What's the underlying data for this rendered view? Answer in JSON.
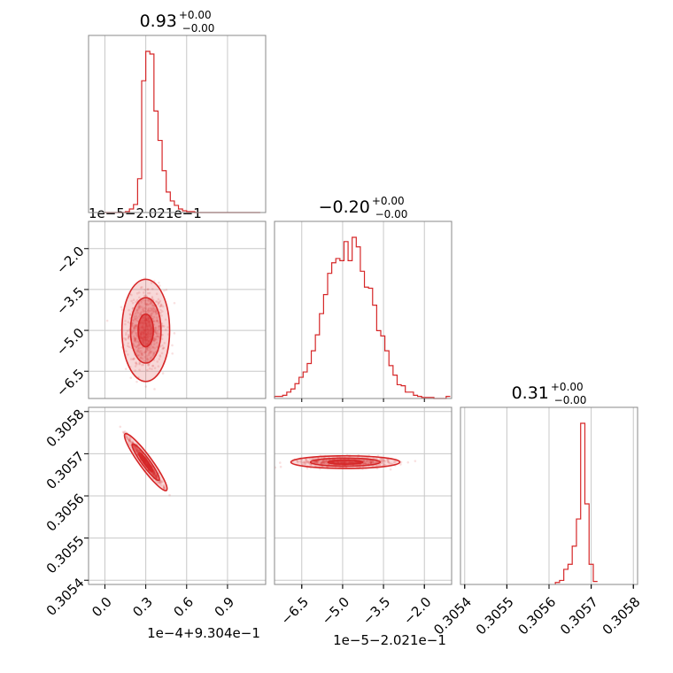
{
  "chart_data": {
    "type": "corner",
    "color": "#d62728",
    "grid": true,
    "parameters": [
      {
        "title_value": "0.93",
        "title_sup": "+0.00",
        "title_sub": "−0.00",
        "offset_label": "1e−4+9.304e−1",
        "ticks": [
          "0.0",
          "0.3",
          "0.6",
          "0.9"
        ],
        "range": [
          -0.12,
          1.18
        ],
        "tick_values": [
          0.0,
          0.3,
          0.6,
          0.9
        ]
      },
      {
        "title_value": "−0.20",
        "title_sup": "+0.00",
        "title_sub": "−0.00",
        "offset_label": "1e−5−2.021e−1",
        "ticks": [
          "−6.5",
          "−5.0",
          "−3.5",
          "−2.0"
        ],
        "range": [
          -7.5,
          -1.0
        ],
        "tick_values": [
          -6.5,
          -5.0,
          -3.5,
          -2.0
        ]
      },
      {
        "title_value": "0.31",
        "title_sup": "+0.00",
        "title_sub": "−0.00",
        "offset_label": "",
        "ticks": [
          "0.3054",
          "0.3055",
          "0.3056",
          "0.3057",
          "0.3058"
        ],
        "range": [
          0.30539,
          0.30581
        ],
        "tick_values": [
          0.3054,
          0.3055,
          0.3056,
          0.3057,
          0.3058
        ]
      }
    ],
    "y_offset_label_row1": "1e−5−2.021e−1",
    "y_ticks_row1": [
      "−2.0",
      "−3.5",
      "−5.0",
      "−6.5"
    ],
    "y_ticks_row2": [
      "0.3058",
      "0.3057",
      "0.3056",
      "0.3055",
      "0.3054"
    ],
    "histograms": [
      {
        "bins": [
          0.0,
          0.03,
          0.06,
          0.09,
          0.12,
          0.15,
          0.18,
          0.21,
          0.24,
          0.27,
          0.3,
          0.33,
          0.36,
          0.39,
          0.42,
          0.45,
          0.48,
          0.51,
          0.54,
          0.57,
          0.6,
          0.63,
          0.66,
          0.69,
          0.72,
          0.75,
          0.78,
          0.81,
          0.84,
          0.87,
          0.9,
          0.93,
          0.96,
          0.99,
          1.02,
          1.05,
          1.08,
          1.11,
          1.14
        ],
        "counts": [
          0,
          0,
          0,
          0,
          0,
          1,
          4,
          9,
          38,
          148,
          181,
          178,
          114,
          81,
          47,
          23,
          13,
          8,
          4,
          2,
          1,
          1,
          0,
          0,
          0,
          0,
          0,
          0,
          0,
          0,
          0,
          0,
          0,
          0,
          0,
          0,
          0,
          0
        ]
      },
      {
        "bins": [
          -7.5,
          -7.35,
          -7.2,
          -7.05,
          -6.9,
          -6.75,
          -6.6,
          -6.45,
          -6.3,
          -6.15,
          -6.0,
          -5.85,
          -5.7,
          -5.55,
          -5.4,
          -5.25,
          -5.1,
          -4.95,
          -4.8,
          -4.65,
          -4.5,
          -4.35,
          -4.2,
          -4.05,
          -3.9,
          -3.75,
          -3.6,
          -3.45,
          -3.3,
          -3.15,
          -3.0,
          -2.85,
          -2.7,
          -2.55,
          -2.4,
          -2.25,
          -2.1,
          -1.95,
          -1.8,
          -1.65,
          -1.5,
          -1.35,
          -1.2,
          -1.05
        ],
        "counts": [
          2,
          2,
          3,
          6,
          9,
          14,
          20,
          25,
          33,
          45,
          60,
          80,
          98,
          118,
          128,
          132,
          130,
          148,
          130,
          152,
          143,
          120,
          105,
          104,
          88,
          64,
          59,
          45,
          31,
          22,
          13,
          12,
          6,
          6,
          3,
          2,
          1,
          1,
          1,
          0,
          0,
          0,
          2
        ]
      },
      {
        "bins": [
          0.305615,
          0.305625,
          0.305635,
          0.305645,
          0.305655,
          0.305665,
          0.305675,
          0.305685,
          0.305695,
          0.305705,
          0.305715
        ],
        "counts": [
          2,
          4,
          15,
          20,
          38,
          65,
          160,
          80,
          20,
          3
        ]
      }
    ],
    "scatter_2d": [
      {
        "x_param": 0,
        "y_param": 1,
        "center": [
          0.3,
          -5.0
        ],
        "sigma": [
          0.07,
          0.75
        ],
        "corr": 0.0
      },
      {
        "x_param": 0,
        "y_param": 2,
        "center": [
          0.3,
          0.30568
        ],
        "sigma": [
          0.06,
          2.7e-05
        ],
        "corr": -0.98
      },
      {
        "x_param": 1,
        "y_param": 2,
        "center": [
          -4.9,
          0.30568
        ],
        "sigma": [
          0.8,
          6e-06
        ],
        "corr": 0.0
      }
    ]
  }
}
